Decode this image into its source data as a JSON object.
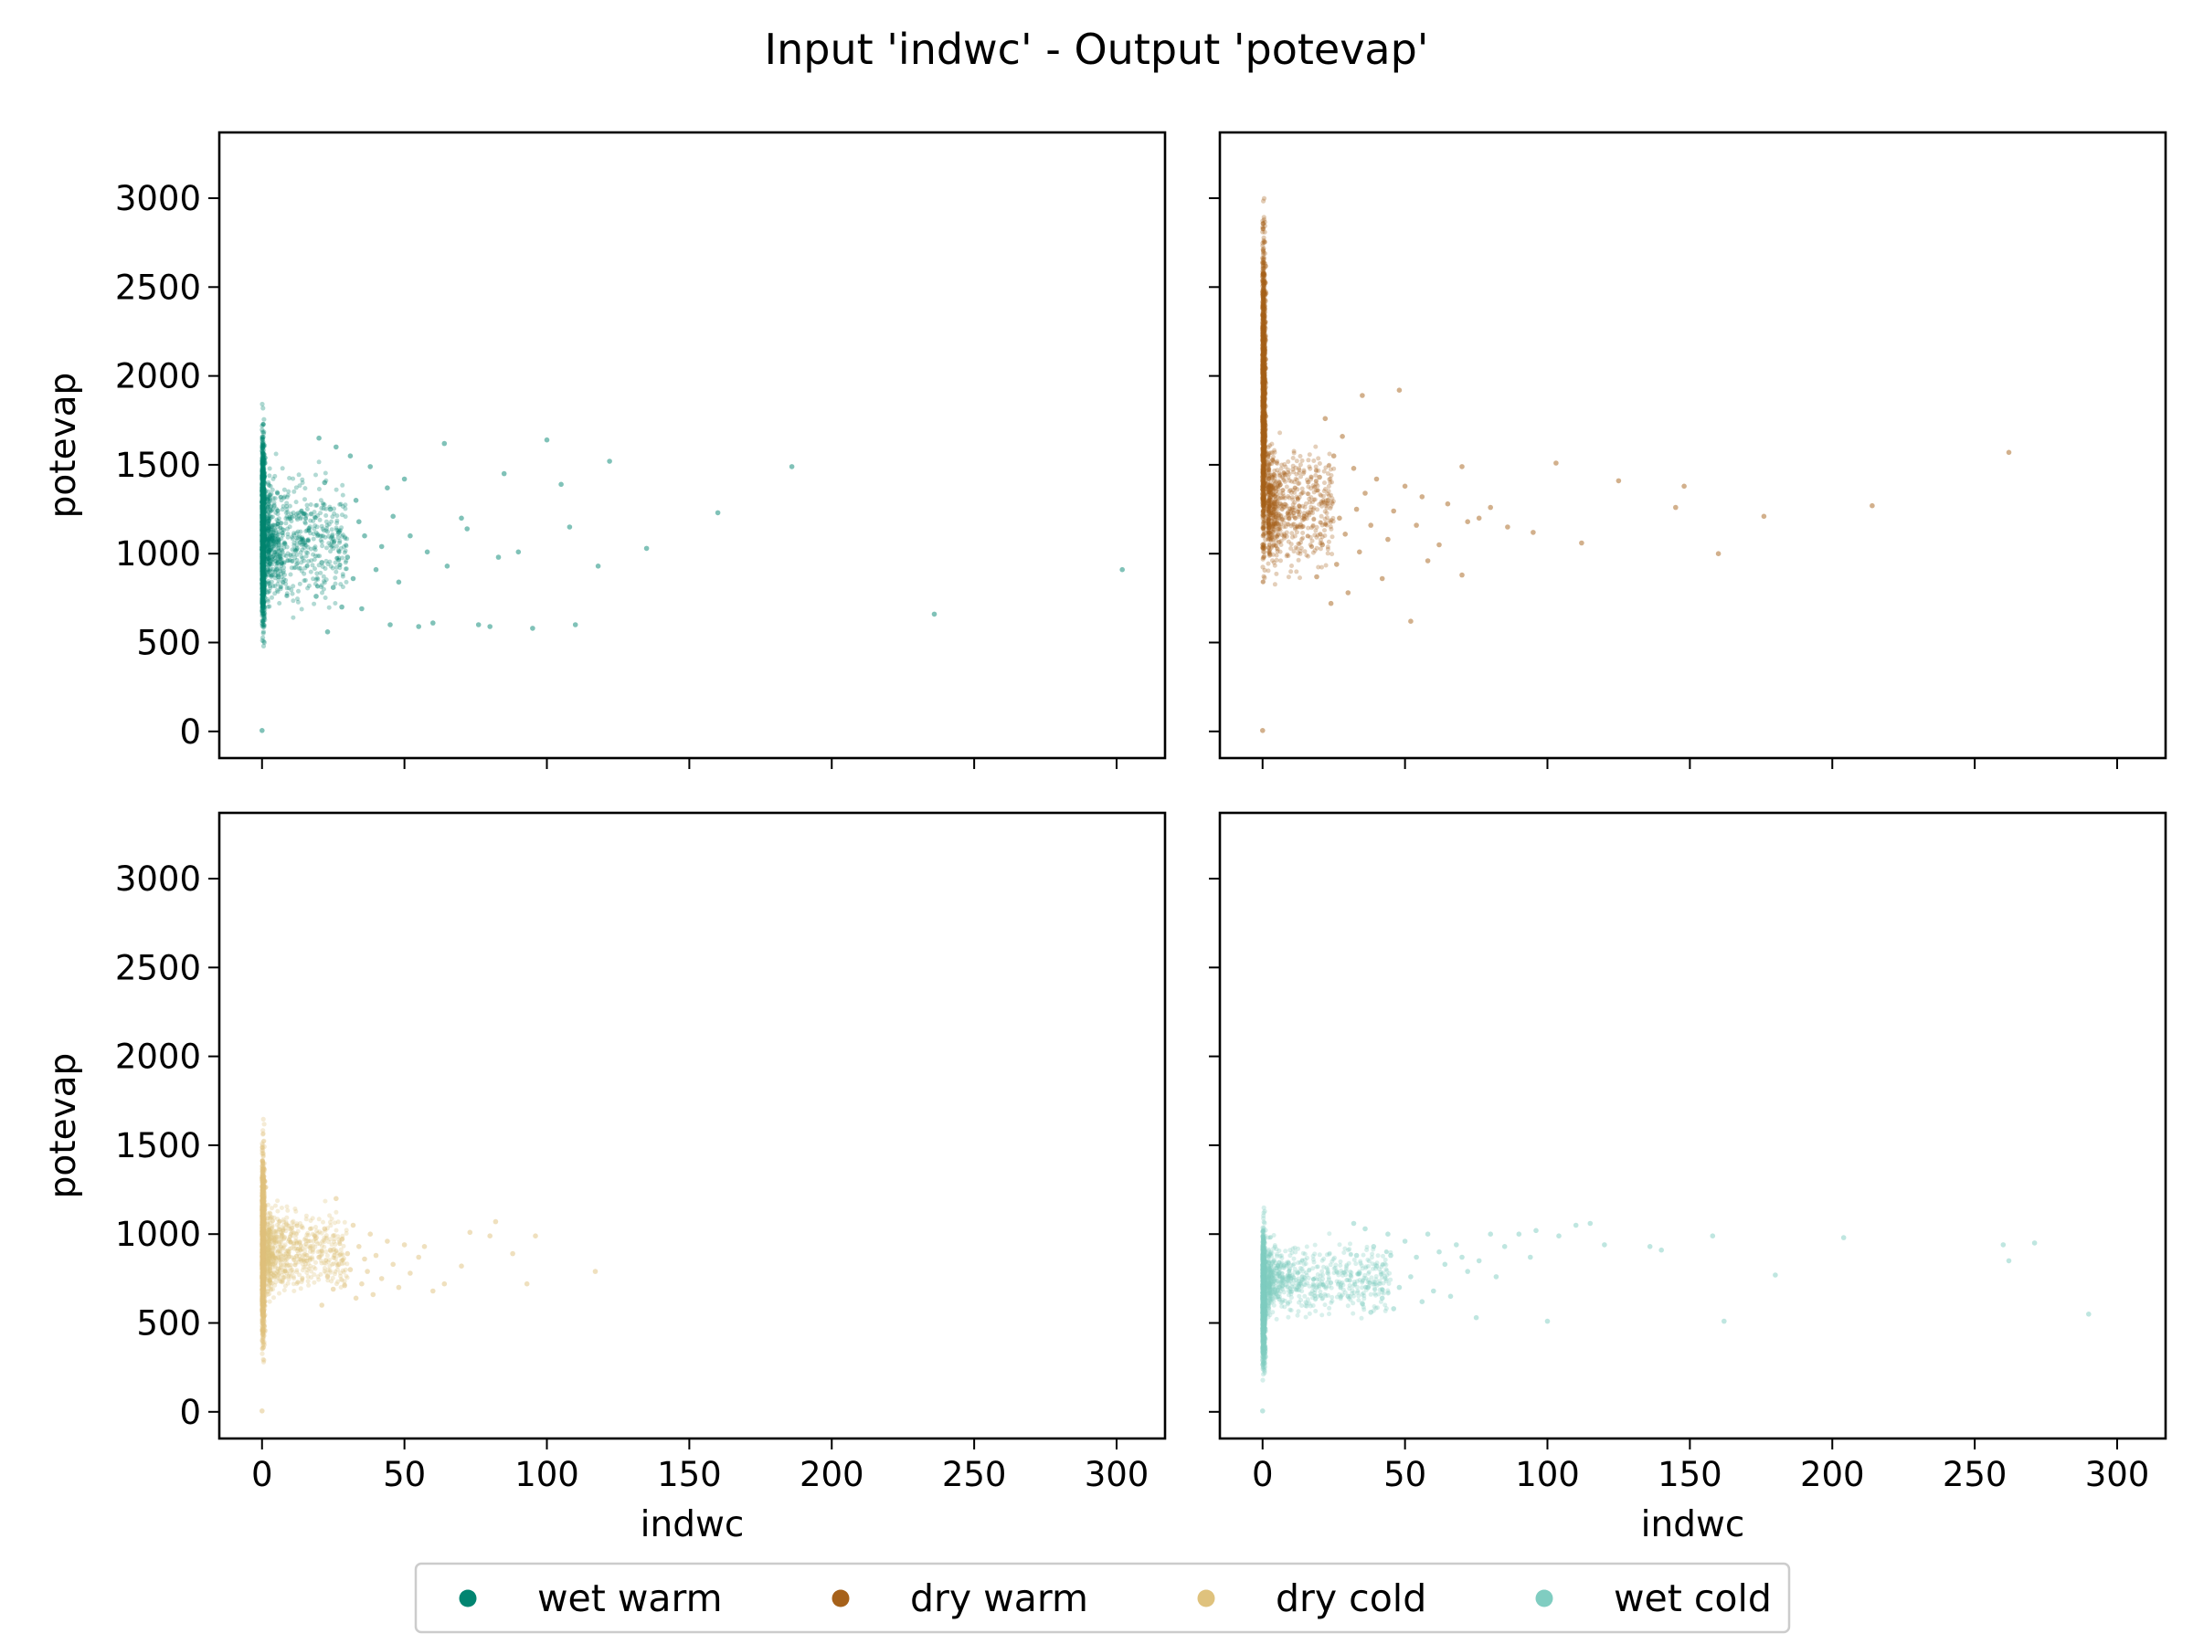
{
  "title": "Input 'indwc' - Output 'potevap'",
  "chart_data": {
    "type": "scatter",
    "title": "Input 'indwc' - Output 'potevap'",
    "layout": "2x2 grid, shared x and y axes",
    "xlabel": "indwc",
    "ylabel": "potevap",
    "xlim": [
      -15,
      317
    ],
    "ylim": [
      -150,
      3370
    ],
    "xticks": [
      0,
      50,
      100,
      150,
      200,
      250,
      300
    ],
    "yticks": [
      0,
      500,
      1000,
      1500,
      2000,
      2500,
      3000
    ],
    "legend": {
      "placement": "bottom-center",
      "entries": [
        "wet warm",
        "dry warm",
        "dry cold",
        "wet cold"
      ]
    },
    "panels": [
      {
        "name": "wet warm",
        "color": "#018571",
        "core": {
          "x_range": [
            0,
            2
          ],
          "y_range": [
            320,
            1930
          ]
        },
        "spread": {
          "x_range": [
            2,
            30
          ],
          "y_range": [
            450,
            1700
          ]
        },
        "points": [
          [
            302,
            910
          ],
          [
            236,
            660
          ],
          [
            186,
            1490
          ],
          [
            160,
            1230
          ],
          [
            135,
            1030
          ],
          [
            122,
            1520
          ],
          [
            118,
            930
          ],
          [
            110,
            600
          ],
          [
            108,
            1150
          ],
          [
            105,
            1390
          ],
          [
            100,
            1640
          ],
          [
            95,
            580
          ],
          [
            90,
            1010
          ],
          [
            85,
            1450
          ],
          [
            83,
            980
          ],
          [
            80,
            590
          ],
          [
            76,
            600
          ],
          [
            72,
            1140
          ],
          [
            70,
            1200
          ],
          [
            65,
            930
          ],
          [
            64,
            1620
          ],
          [
            60,
            610
          ],
          [
            58,
            1010
          ],
          [
            55,
            590
          ],
          [
            52,
            1100
          ],
          [
            50,
            1420
          ],
          [
            48,
            840
          ],
          [
            46,
            1210
          ],
          [
            45,
            600
          ],
          [
            44,
            1370
          ],
          [
            42,
            1040
          ],
          [
            40,
            910
          ],
          [
            38,
            1490
          ],
          [
            36,
            1100
          ],
          [
            35,
            690
          ],
          [
            34,
            1180
          ],
          [
            33,
            1300
          ],
          [
            32,
            860
          ],
          [
            31,
            1550
          ],
          [
            30,
            980
          ],
          [
            28,
            700
          ],
          [
            27,
            1120
          ],
          [
            26,
            1600
          ],
          [
            25,
            810
          ],
          [
            24,
            1250
          ],
          [
            23,
            560
          ],
          [
            22,
            1400
          ],
          [
            21,
            950
          ],
          [
            20,
            1650
          ],
          [
            19,
            760
          ],
          [
            0,
            5
          ]
        ]
      },
      {
        "name": "dry warm",
        "color": "#a6611a",
        "core": {
          "x_range": [
            0,
            2
          ],
          "y_range": [
            600,
            3220
          ]
        },
        "spread": {
          "x_range": [
            2,
            25
          ],
          "y_range": [
            680,
            1850
          ]
        },
        "points": [
          [
            262,
            1570
          ],
          [
            214,
            1270
          ],
          [
            176,
            1210
          ],
          [
            160,
            1000
          ],
          [
            145,
            1260
          ],
          [
            148,
            1380
          ],
          [
            125,
            1410
          ],
          [
            112,
            1060
          ],
          [
            103,
            1510
          ],
          [
            95,
            1120
          ],
          [
            86,
            1150
          ],
          [
            80,
            1260
          ],
          [
            76,
            1200
          ],
          [
            72,
            1180
          ],
          [
            70,
            880
          ],
          [
            70,
            1490
          ],
          [
            65,
            1280
          ],
          [
            62,
            1050
          ],
          [
            58,
            960
          ],
          [
            56,
            1320
          ],
          [
            54,
            1160
          ],
          [
            52,
            620
          ],
          [
            50,
            1380
          ],
          [
            48,
            1920
          ],
          [
            46,
            1240
          ],
          [
            44,
            1080
          ],
          [
            42,
            860
          ],
          [
            40,
            1420
          ],
          [
            38,
            1160
          ],
          [
            36,
            1340
          ],
          [
            35,
            1890
          ],
          [
            34,
            1010
          ],
          [
            33,
            1250
          ],
          [
            32,
            1480
          ],
          [
            30,
            780
          ],
          [
            29,
            1110
          ],
          [
            28,
            1660
          ],
          [
            27,
            1200
          ],
          [
            26,
            940
          ],
          [
            25,
            1550
          ],
          [
            24,
            720
          ],
          [
            23,
            1300
          ],
          [
            22,
            1760
          ],
          [
            21,
            1050
          ],
          [
            20,
            1430
          ],
          [
            19,
            870
          ],
          [
            0,
            5
          ]
        ]
      },
      {
        "name": "dry cold",
        "color": "#dfc27d",
        "core": {
          "x_range": [
            0,
            2
          ],
          "y_range": [
            130,
            1720
          ]
        },
        "spread": {
          "x_range": [
            2,
            30
          ],
          "y_range": [
            500,
            1300
          ]
        },
        "points": [
          [
            117,
            790
          ],
          [
            96,
            990
          ],
          [
            93,
            720
          ],
          [
            88,
            890
          ],
          [
            82,
            1070
          ],
          [
            80,
            990
          ],
          [
            73,
            1010
          ],
          [
            70,
            820
          ],
          [
            64,
            720
          ],
          [
            60,
            680
          ],
          [
            57,
            930
          ],
          [
            55,
            870
          ],
          [
            52,
            780
          ],
          [
            50,
            940
          ],
          [
            48,
            700
          ],
          [
            46,
            830
          ],
          [
            44,
            960
          ],
          [
            42,
            750
          ],
          [
            40,
            880
          ],
          [
            39,
            660
          ],
          [
            38,
            1000
          ],
          [
            37,
            790
          ],
          [
            36,
            860
          ],
          [
            35,
            720
          ],
          [
            34,
            930
          ],
          [
            33,
            640
          ],
          [
            32,
            1050
          ],
          [
            31,
            800
          ],
          [
            30,
            890
          ],
          [
            29,
            710
          ],
          [
            28,
            970
          ],
          [
            27,
            830
          ],
          [
            26,
            1200
          ],
          [
            25,
            690
          ],
          [
            24,
            910
          ],
          [
            23,
            760
          ],
          [
            22,
            1030
          ],
          [
            21,
            600
          ],
          [
            20,
            870
          ],
          [
            19,
            980
          ],
          [
            0,
            5
          ]
        ]
      },
      {
        "name": "wet cold",
        "color": "#80cdc1",
        "core": {
          "x_range": [
            0,
            2
          ],
          "y_range": [
            80,
            1200
          ]
        },
        "spread": {
          "x_range": [
            2,
            45
          ],
          "y_range": [
            400,
            1100
          ]
        },
        "points": [
          [
            290,
            550
          ],
          [
            271,
            950
          ],
          [
            262,
            850
          ],
          [
            260,
            940
          ],
          [
            204,
            980
          ],
          [
            180,
            770
          ],
          [
            162,
            510
          ],
          [
            158,
            990
          ],
          [
            140,
            910
          ],
          [
            136,
            930
          ],
          [
            120,
            940
          ],
          [
            115,
            1060
          ],
          [
            110,
            1050
          ],
          [
            104,
            990
          ],
          [
            100,
            510
          ],
          [
            96,
            1020
          ],
          [
            94,
            870
          ],
          [
            90,
            1000
          ],
          [
            85,
            930
          ],
          [
            82,
            760
          ],
          [
            80,
            1000
          ],
          [
            76,
            850
          ],
          [
            75,
            530
          ],
          [
            72,
            790
          ],
          [
            70,
            870
          ],
          [
            68,
            940
          ],
          [
            66,
            650
          ],
          [
            64,
            830
          ],
          [
            62,
            900
          ],
          [
            60,
            680
          ],
          [
            58,
            1000
          ],
          [
            56,
            620
          ],
          [
            54,
            870
          ],
          [
            52,
            760
          ],
          [
            50,
            960
          ],
          [
            48,
            700
          ],
          [
            46,
            580
          ],
          [
            45,
            880
          ],
          [
            44,
            1000
          ],
          [
            42,
            640
          ],
          [
            40,
            820
          ],
          [
            39,
            930
          ],
          [
            38,
            560
          ],
          [
            37,
            700
          ],
          [
            36,
            1030
          ],
          [
            35,
            610
          ],
          [
            34,
            780
          ],
          [
            33,
            880
          ],
          [
            32,
            1060
          ],
          [
            30,
            650
          ],
          [
            0,
            5
          ]
        ]
      }
    ]
  }
}
